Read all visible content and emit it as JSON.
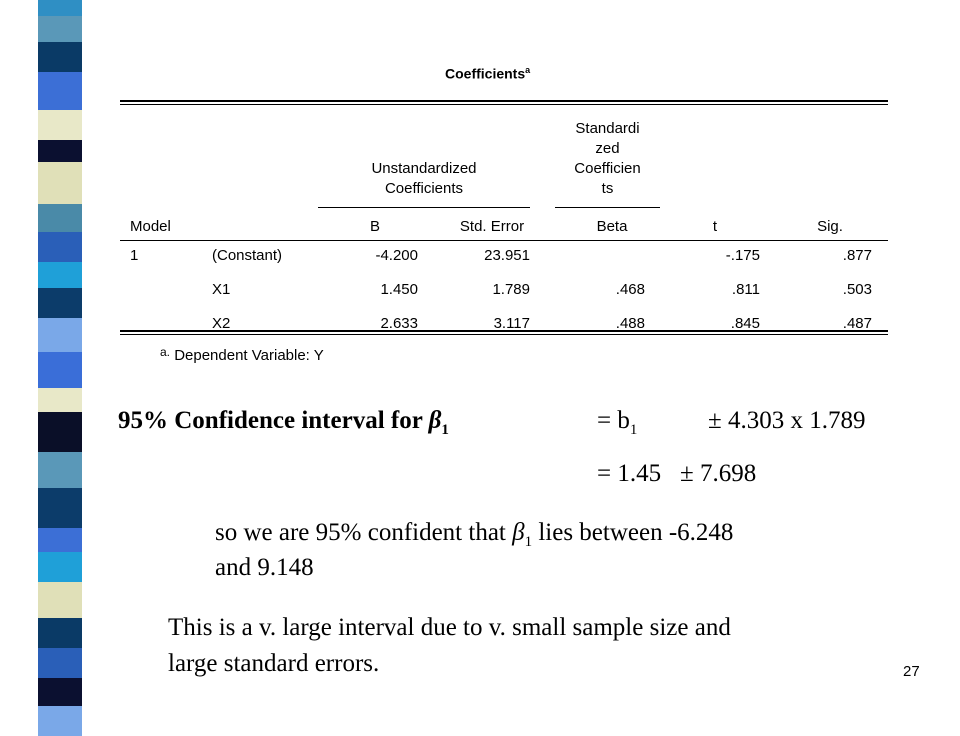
{
  "table": {
    "title": "Coefficients",
    "title_sup": "a",
    "group_headers": {
      "unstandardized": [
        "Unstandardized",
        "Coefficients"
      ],
      "standardized": [
        "Standardi",
        "zed",
        "Coefficien",
        "ts"
      ]
    },
    "columns": [
      "Model",
      null,
      "B",
      "Std. Error",
      "Beta",
      "t",
      "Sig."
    ],
    "rows": [
      [
        "1",
        "(Constant)",
        "-4.200",
        "23.951",
        null,
        "-.175",
        ".877"
      ],
      [
        null,
        "X1",
        "1.450",
        "1.789",
        ".468",
        ".811",
        ".503"
      ],
      [
        null,
        "X2",
        "2.633",
        "3.117",
        ".488",
        ".845",
        ".487"
      ]
    ],
    "footnote": {
      "marker": "a.",
      "text": "Dependent Variable: Y"
    }
  },
  "confidence": {
    "line1": {
      "label": "95% Confidence interval for ",
      "beta": "β",
      "beta_sub": "1",
      "eq": "= b",
      "eq_sub": "1",
      "pm": "± 4.303 x 1.789"
    },
    "line2": {
      "eq": "= 1.45",
      "pm": "± 7.698"
    },
    "statement": {
      "text": "so we are 95% confident that ",
      "beta": "β",
      "beta_sub": "1",
      "rest": " lies between -6.248",
      "line2": "and 9.148"
    },
    "note": [
      "This is a v. large interval due to v. small sample size and",
      "large standard errors."
    ]
  },
  "page_number": "27"
}
